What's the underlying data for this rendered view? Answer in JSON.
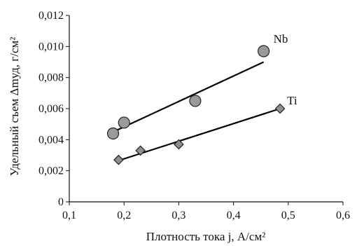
{
  "chart_data": {
    "type": "scatter",
    "xlabel": "Плотность тока j, А/см²",
    "ylabel": "Удельный съем Δmуд, г/см²",
    "xlim": [
      0.1,
      0.6
    ],
    "ylim": [
      0,
      0.012
    ],
    "x_ticks": [
      "0,1",
      "0,2",
      "0,3",
      "0,4",
      "0,5",
      "0,6"
    ],
    "y_ticks": [
      "0",
      "0,002",
      "0,004",
      "0,006",
      "0,008",
      "0,010",
      "0,012"
    ],
    "grid": false,
    "series": [
      {
        "name": "Nb",
        "marker": "circle",
        "color": "#9a9a9a",
        "x": [
          0.18,
          0.2,
          0.33,
          0.455
        ],
        "y": [
          0.0044,
          0.0051,
          0.0065,
          0.0097
        ],
        "trendline": {
          "x": [
            0.18,
            0.455
          ],
          "y": [
            0.0045,
            0.009
          ]
        }
      },
      {
        "name": "Ti",
        "marker": "diamond",
        "color": "#8f8f8f",
        "x": [
          0.19,
          0.23,
          0.3,
          0.485
        ],
        "y": [
          0.0027,
          0.0033,
          0.0037,
          0.006
        ],
        "trendline": {
          "x": [
            0.185,
            0.485
          ],
          "y": [
            0.0026,
            0.006
          ]
        }
      }
    ]
  }
}
